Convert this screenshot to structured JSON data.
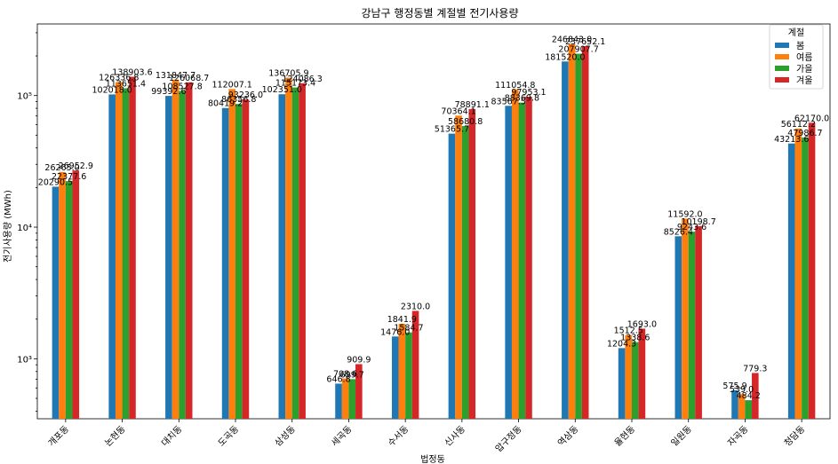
{
  "chart_data": {
    "type": "bar",
    "title": "강남구 행정동별 계절별 전기사용량",
    "xlabel": "법정동",
    "ylabel": "전기사용량 (MWh)",
    "yscale": "log",
    "ylim": [
      350,
      350000
    ],
    "yticks": [
      {
        "value": 1000,
        "label": "10³"
      },
      {
        "value": 10000,
        "label": "10⁴"
      },
      {
        "value": 100000,
        "label": "10⁵"
      }
    ],
    "categories": [
      "개포동",
      "논현동",
      "대치동",
      "도곡동",
      "삼성동",
      "세곡동",
      "수서동",
      "신사동",
      "압구정동",
      "역삼동",
      "율현동",
      "일원동",
      "자곡동",
      "청담동"
    ],
    "legend_title": "계절",
    "legend_position": "top-right",
    "series": [
      {
        "name": "봄",
        "color": "#1f77b4",
        "values": [
          20290.5,
          102018.0,
          99392.6,
          80419.2,
          102351.0,
          646.8,
          1476.0,
          51365.7,
          83567.5,
          181520.0,
          1204.3,
          8526.4,
          575.9,
          43213.6
        ]
      },
      {
        "name": "여름",
        "color": "#ff7f0e",
        "values": [
          26265.0,
          126336.8,
          131847.7,
          112007.1,
          136705.9,
          708.6,
          1841.9,
          70364.1,
          111054.8,
          246843.0,
          1512.5,
          11592.0,
          539.0,
          56112.2
        ]
      },
      {
        "name": "가을",
        "color": "#2ca02c",
        "values": [
          22377.6,
          113651.4,
          108527.8,
          86356.8,
          115173.4,
          699.7,
          1584.7,
          58680.8,
          88369.8,
          207907.7,
          1338.6,
          9243.6,
          484.2,
          47986.7
        ]
      },
      {
        "name": "겨울",
        "color": "#d62728",
        "values": [
          26952.9,
          138903.6,
          126068.7,
          93236.0,
          124086.3,
          909.9,
          2310.0,
          78891.1,
          97953.1,
          237652.1,
          1693.0,
          10198.7,
          779.3,
          62170.0
        ]
      }
    ],
    "data_labels": [
      [
        "20290.5",
        "102018.0",
        "99392.6",
        "80419.2",
        "102351.0",
        "646.8",
        "1476.0",
        "51365.7",
        "83567.5",
        "181520.0",
        "1204.3",
        "8526.4",
        "575.9",
        "43213.6"
      ],
      [
        "26265.0",
        "126336.8",
        "131847.7",
        "112007.1",
        "136705.9",
        "708.6",
        "1841.9",
        "70364.1",
        "111054.8",
        "246843.0",
        "1512.5",
        "11592.0",
        "539.0",
        "56112.2"
      ],
      [
        "22377.6",
        "113651.4",
        "108527.8",
        "86356.8",
        "115173.4",
        "699.7",
        "1584.7",
        "58680.8",
        "88369.8",
        "207907.7",
        "1338.6",
        "9243.6",
        "484.2",
        "47986.7"
      ],
      [
        "26952.9",
        "138903.6",
        "126068.7",
        "93236.0",
        "124086.3",
        "909.9",
        "2310.0",
        "78891.1",
        "97953.1",
        "237652.1",
        "1693.0",
        "10198.7",
        "779.3",
        "62170.0"
      ]
    ]
  }
}
